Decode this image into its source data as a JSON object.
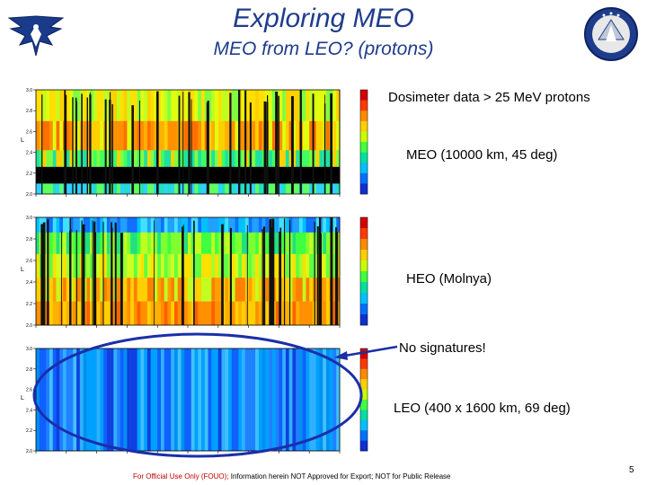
{
  "header": {
    "title": "Exploring MEO",
    "subtitle": "MEO from LEO? (protons)"
  },
  "labels": {
    "dosimeter": "Dosimeter data   > 25 MeV protons",
    "meo": "MEO (10000 km, 45 deg)",
    "heo": "HEO (Molnya)",
    "no_signatures": "No signatures!",
    "leo": "LEO (400 x 1600 km, 69 deg)"
  },
  "panels": {
    "meo": {
      "ytick_labels": [
        "3.0",
        "2.8",
        "2.6",
        "2.4",
        "2.2",
        "2.0"
      ],
      "ylabel": "L"
    },
    "heo": {
      "ytick_labels": [
        "3.0",
        "2.8",
        "2.6",
        "2.4",
        "2.2",
        "2.0"
      ],
      "ylabel": "L"
    },
    "leo": {
      "ytick_labels": [
        "3.0",
        "2.8",
        "2.6",
        "2.4",
        "2.2",
        "2.0"
      ],
      "ylabel": "L"
    }
  },
  "footer": {
    "fouo": "For Official Use Only (FOUO);",
    "rest": " Information herein NOT Approved for Export;  NOT for Public Release"
  },
  "page_number": "5",
  "colors": {
    "title": "#1f3c8c",
    "footer_red": "#c00000",
    "ellipse": "#1a2fa8"
  }
}
